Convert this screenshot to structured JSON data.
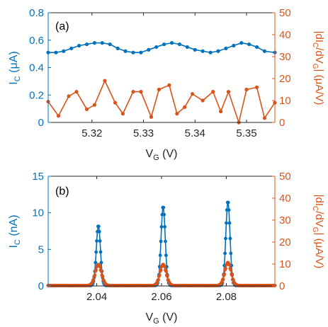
{
  "colors": {
    "left_axis": "#0072BD",
    "right_axis": "#D95319",
    "frame": "#262626",
    "tick_text": "#262626"
  },
  "chart_data": [
    {
      "type": "line",
      "panel_label": "(a)",
      "xlabel": "V",
      "xlabel_sub": "G",
      "xlabel_unit": " (V)",
      "ylabel_left": "I",
      "ylabel_left_sub": "C",
      "ylabel_left_unit": " (μA)",
      "ylabel_right_pre": "|dI",
      "ylabel_right_sub1": "C",
      "ylabel_right_mid": "/dV",
      "ylabel_right_sub2": "G",
      "ylabel_right_unit": "| (μA/V)",
      "xlim": [
        5.3115,
        5.3555
      ],
      "ylim_left": [
        0,
        0.8
      ],
      "ylim_right": [
        0,
        50
      ],
      "xticks": [
        5.32,
        5.33,
        5.34,
        5.35
      ],
      "xtick_labels": [
        "5.32",
        "5.33",
        "5.34",
        "5.35"
      ],
      "yticks_left": [
        0,
        0.2,
        0.4,
        0.6,
        0.8
      ],
      "ytick_labels_left": [
        "0",
        "0.2",
        "0.4",
        "0.6",
        "0.8"
      ],
      "yticks_right": [
        0,
        10,
        20,
        30,
        40,
        50
      ],
      "ytick_labels_right": [
        "0",
        "10",
        "20",
        "30",
        "40",
        "50"
      ],
      "series": [
        {
          "axis": "left",
          "color": "#0072BD",
          "x": [
            5.3115,
            5.313,
            5.3145,
            5.316,
            5.3175,
            5.319,
            5.3205,
            5.322,
            5.3235,
            5.325,
            5.3265,
            5.328,
            5.3295,
            5.331,
            5.3325,
            5.334,
            5.3355,
            5.337,
            5.3385,
            5.34,
            5.3415,
            5.343,
            5.3445,
            5.346,
            5.3475,
            5.349,
            5.3505,
            5.352,
            5.3535,
            5.3555
          ],
          "y": [
            0.51,
            0.51,
            0.52,
            0.54,
            0.56,
            0.57,
            0.58,
            0.58,
            0.57,
            0.54,
            0.52,
            0.51,
            0.51,
            0.53,
            0.55,
            0.57,
            0.58,
            0.57,
            0.55,
            0.53,
            0.52,
            0.51,
            0.52,
            0.54,
            0.56,
            0.58,
            0.57,
            0.55,
            0.52,
            0.51
          ]
        },
        {
          "axis": "right",
          "color": "#D95319",
          "x": [
            5.3115,
            5.3135,
            5.3155,
            5.317,
            5.319,
            5.3205,
            5.3225,
            5.3245,
            5.326,
            5.328,
            5.3295,
            5.3315,
            5.333,
            5.335,
            5.3365,
            5.338,
            5.3395,
            5.3415,
            5.3435,
            5.345,
            5.3465,
            5.3485,
            5.35,
            5.352,
            5.3535,
            5.3555
          ],
          "y": [
            9.5,
            3,
            12,
            14,
            6,
            8,
            19,
            9,
            4,
            14,
            14,
            2.5,
            15,
            17,
            4,
            7,
            13,
            10,
            14,
            5,
            14,
            0,
            15,
            16,
            2,
            9
          ]
        }
      ]
    },
    {
      "type": "line",
      "panel_label": "(b)",
      "xlabel": "V",
      "xlabel_sub": "G",
      "xlabel_unit": " (V)",
      "ylabel_left": "I",
      "ylabel_left_sub": "C",
      "ylabel_left_unit": " (nA)",
      "ylabel_right_pre": "|dI",
      "ylabel_right_sub1": "C",
      "ylabel_right_mid": "/dV",
      "ylabel_right_sub2": "G",
      "ylabel_right_unit": "| (μA/V)",
      "xlim": [
        2.025,
        2.095
      ],
      "ylim_left": [
        0,
        15
      ],
      "ylim_right": [
        0,
        50
      ],
      "xticks": [
        2.04,
        2.06,
        2.08
      ],
      "xtick_labels": [
        "2.04",
        "2.06",
        "2.08"
      ],
      "yticks_left": [
        0,
        5,
        10,
        15
      ],
      "ytick_labels_left": [
        "0",
        "5",
        "10",
        "15"
      ],
      "yticks_right": [
        0,
        10,
        20,
        30,
        40,
        50
      ],
      "ytick_labels_right": [
        "0",
        "10",
        "20",
        "30",
        "40",
        "50"
      ],
      "peaks": [
        {
          "center": 2.0405,
          "height": 8.2,
          "deriv_height": 11
        },
        {
          "center": 2.0605,
          "height": 10.8,
          "deriv_height": 11
        },
        {
          "center": 2.0805,
          "height": 11.5,
          "deriv_height": 12
        }
      ]
    }
  ]
}
